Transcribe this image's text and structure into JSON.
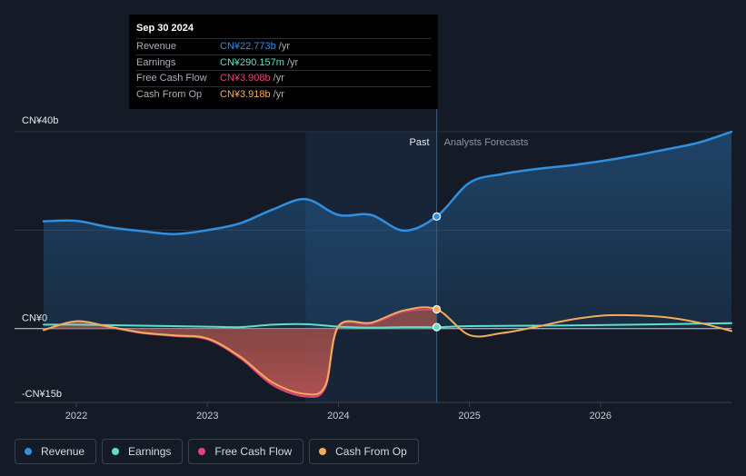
{
  "tooltip": {
    "date": "Sep 30 2024",
    "rows": [
      {
        "label": "Revenue",
        "value": "CN¥22.773b",
        "unit": "/yr",
        "color": "#2f8fe0"
      },
      {
        "label": "Earnings",
        "value": "CN¥290.157m",
        "unit": "/yr",
        "color": "#5ee0c8"
      },
      {
        "label": "Free Cash Flow",
        "value": "CN¥3.908b",
        "unit": "/yr",
        "color": "#e0457b"
      },
      {
        "label": "Cash From Op",
        "value": "CN¥3.918b",
        "unit": "/yr",
        "color": "#f2ad5a"
      }
    ]
  },
  "legend": [
    {
      "label": "Revenue",
      "color": "#2f8fe0"
    },
    {
      "label": "Earnings",
      "color": "#5ee0c8"
    },
    {
      "label": "Free Cash Flow",
      "color": "#e0457b"
    },
    {
      "label": "Cash From Op",
      "color": "#f2ad5a"
    }
  ],
  "chart_data": {
    "type": "line",
    "y_tick_labels": [
      {
        "label": "CN¥40b",
        "value": 40
      },
      {
        "label": "CN¥0",
        "value": 0
      },
      {
        "label": "-CN¥15b",
        "value": -15
      }
    ],
    "ylim": [
      -15,
      40
    ],
    "xlim": [
      2021.75,
      2027.0
    ],
    "x_tick_labels": [
      {
        "label": "2022",
        "value": 2022
      },
      {
        "label": "2023",
        "value": 2023
      },
      {
        "label": "2024",
        "value": 2024
      },
      {
        "label": "2025",
        "value": 2025
      },
      {
        "label": "2026",
        "value": 2026
      }
    ],
    "past_label": "Past",
    "forecast_label": "Analysts Forecasts",
    "divider_x": 2024.75,
    "highlight_start": 2023.75,
    "series": [
      {
        "name": "Revenue",
        "color": "#2f8fe0",
        "area": true,
        "points": [
          [
            2021.75,
            21.8
          ],
          [
            2022.0,
            21.9
          ],
          [
            2022.25,
            20.6
          ],
          [
            2022.5,
            19.8
          ],
          [
            2022.75,
            19.2
          ],
          [
            2023.0,
            20.0
          ],
          [
            2023.25,
            21.4
          ],
          [
            2023.5,
            24.2
          ],
          [
            2023.75,
            26.3
          ],
          [
            2024.0,
            23.1
          ],
          [
            2024.25,
            23.1
          ],
          [
            2024.5,
            19.9
          ],
          [
            2024.75,
            22.773
          ],
          [
            2025.0,
            29.6
          ],
          [
            2025.25,
            31.4
          ],
          [
            2025.5,
            32.4
          ],
          [
            2025.75,
            33.1
          ],
          [
            2026.0,
            34.0
          ],
          [
            2026.25,
            35.1
          ],
          [
            2026.5,
            36.4
          ],
          [
            2026.75,
            37.8
          ],
          [
            2027.0,
            40.0
          ]
        ]
      },
      {
        "name": "Earnings",
        "color": "#5ee0c8",
        "area": false,
        "points": [
          [
            2021.75,
            0.8
          ],
          [
            2022.0,
            0.8
          ],
          [
            2022.5,
            0.6
          ],
          [
            2023.0,
            0.4
          ],
          [
            2023.25,
            0.3
          ],
          [
            2023.5,
            0.8
          ],
          [
            2023.75,
            0.9
          ],
          [
            2024.0,
            0.4
          ],
          [
            2024.25,
            0.2
          ],
          [
            2024.5,
            0.3
          ],
          [
            2024.75,
            0.29
          ],
          [
            2025.0,
            0.5
          ],
          [
            2025.5,
            0.6
          ],
          [
            2026.0,
            0.7
          ],
          [
            2026.5,
            0.9
          ],
          [
            2027.0,
            1.1
          ]
        ]
      },
      {
        "name": "Free Cash Flow",
        "color": "#e0457b",
        "area": true,
        "points": [
          [
            2021.75,
            -0.3
          ],
          [
            2022.0,
            1.4
          ],
          [
            2022.25,
            0.3
          ],
          [
            2022.5,
            -0.9
          ],
          [
            2022.75,
            -1.5
          ],
          [
            2023.0,
            -2.2
          ],
          [
            2023.25,
            -6.0
          ],
          [
            2023.5,
            -11.5
          ],
          [
            2023.75,
            -13.8
          ],
          [
            2023.9,
            -12.0
          ],
          [
            2024.0,
            0.3
          ],
          [
            2024.25,
            1.0
          ],
          [
            2024.5,
            3.5
          ],
          [
            2024.75,
            3.908
          ]
        ]
      },
      {
        "name": "Cash From Op",
        "color": "#f2ad5a",
        "area": true,
        "points": [
          [
            2021.75,
            -0.3
          ],
          [
            2022.0,
            1.5
          ],
          [
            2022.25,
            0.4
          ],
          [
            2022.5,
            -0.8
          ],
          [
            2022.75,
            -1.4
          ],
          [
            2023.0,
            -2.0
          ],
          [
            2023.25,
            -5.7
          ],
          [
            2023.5,
            -11.0
          ],
          [
            2023.75,
            -13.3
          ],
          [
            2023.9,
            -11.6
          ],
          [
            2024.0,
            0.5
          ],
          [
            2024.25,
            1.2
          ],
          [
            2024.5,
            3.7
          ],
          [
            2024.75,
            3.918
          ],
          [
            2025.0,
            -1.3
          ],
          [
            2025.25,
            -0.9
          ],
          [
            2025.5,
            0.3
          ],
          [
            2025.75,
            1.7
          ],
          [
            2026.0,
            2.6
          ],
          [
            2026.25,
            2.7
          ],
          [
            2026.5,
            2.3
          ],
          [
            2026.75,
            1.2
          ],
          [
            2027.0,
            -0.5
          ]
        ]
      }
    ],
    "current_markers": [
      {
        "series": "Revenue",
        "x": 2024.75,
        "y": 22.773
      },
      {
        "series": "Earnings",
        "x": 2024.75,
        "y": 0.29
      },
      {
        "series": "Cash From Op",
        "x": 2024.75,
        "y": 3.918
      }
    ]
  }
}
